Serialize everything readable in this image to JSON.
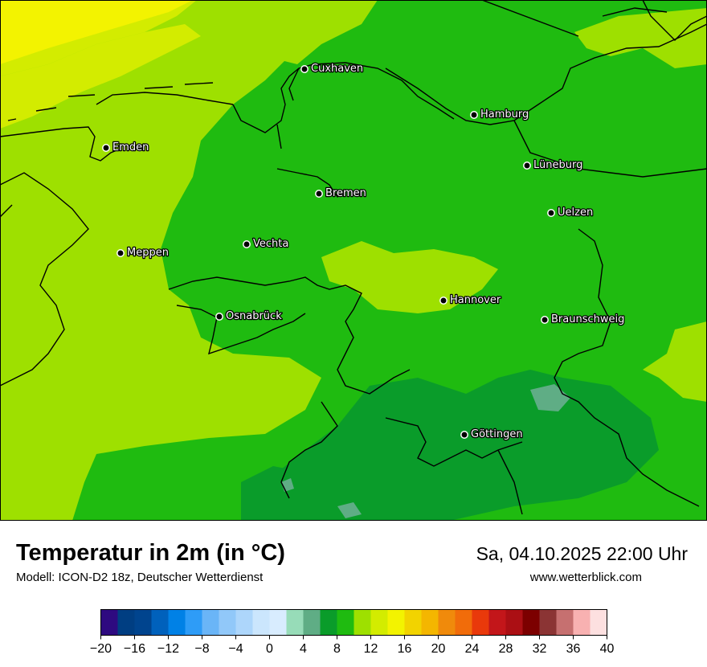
{
  "title": "Temperatur in 2m (in °C)",
  "model": "Modell: ICON-D2 18z, Deutscher Wetterdienst",
  "datetime": "Sa, 04.10.2025 22:00 Uhr",
  "website": "www.wetterblick.com",
  "cities": [
    {
      "name": "Cuxhaven",
      "icon": "city-dot"
    },
    {
      "name": "Hamburg",
      "icon": "city-dot"
    },
    {
      "name": "Emden",
      "icon": "city-dot"
    },
    {
      "name": "Lüneburg",
      "icon": "city-dot"
    },
    {
      "name": "Bremen",
      "icon": "city-dot"
    },
    {
      "name": "Uelzen",
      "icon": "city-dot"
    },
    {
      "name": "Vechta",
      "icon": "city-dot"
    },
    {
      "name": "Meppen",
      "icon": "city-dot"
    },
    {
      "name": "Hannover",
      "icon": "city-dot"
    },
    {
      "name": "Osnabrück",
      "icon": "city-dot"
    },
    {
      "name": "Braunschweig",
      "icon": "city-dot"
    },
    {
      "name": "Göttingen",
      "icon": "city-dot"
    }
  ],
  "legend": {
    "ticks": [
      "−20",
      "−16",
      "−12",
      "−8",
      "−4",
      "0",
      "4",
      "8",
      "12",
      "16",
      "20",
      "24",
      "28",
      "32",
      "36",
      "40"
    ],
    "colors": [
      "#2e0a80",
      "#003e82",
      "#00448e",
      "#0061bc",
      "#0081e6",
      "#2e9cf7",
      "#6ab5f7",
      "#91c8f9",
      "#add6fb",
      "#cbe6fd",
      "#d8ecfe",
      "#97dcb8",
      "#5fad85",
      "#0a9c2a",
      "#1fbb10",
      "#9ee000",
      "#d3ec00",
      "#f3f300",
      "#f2d300",
      "#f4b600",
      "#f08a0b",
      "#f16c0a",
      "#e9390b",
      "#c3161a",
      "#ab0f14",
      "#7c0000",
      "#8b3434",
      "#c67070",
      "#f8b1b1",
      "#fde0e0"
    ]
  }
}
